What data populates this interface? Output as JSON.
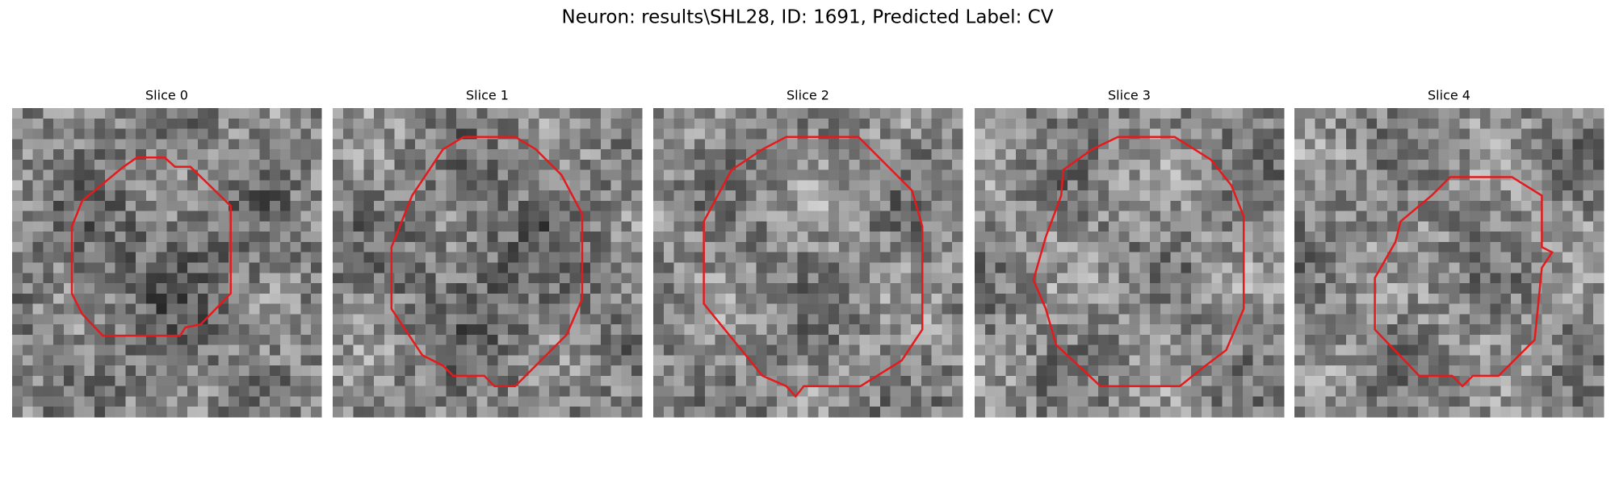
{
  "title": "Neuron: results\\SHL28, ID: 1691, Predicted Label: CV",
  "panels": [
    {
      "title": "Slice 0"
    },
    {
      "title": "Slice 1"
    },
    {
      "title": "Slice 2"
    },
    {
      "title": "Slice 3"
    },
    {
      "title": "Slice 4"
    }
  ]
}
